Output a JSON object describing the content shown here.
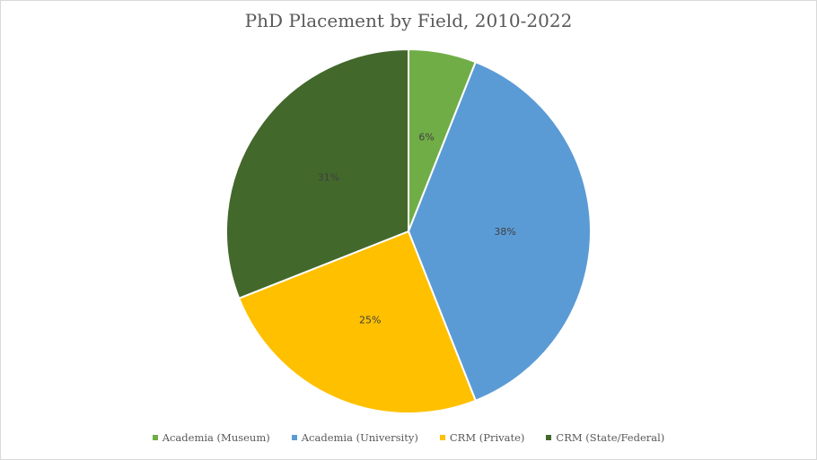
{
  "chart_data": {
    "type": "pie",
    "title": "PhD Placement by Field, 2010-2022",
    "slices": [
      {
        "label": "Academia (Museum)",
        "value": 6,
        "data_label": "6%",
        "color": "#70ad47"
      },
      {
        "label": "Academia (University)",
        "value": 38,
        "data_label": "38%",
        "color": "#5b9bd5"
      },
      {
        "label": "CRM (Private)",
        "value": 25,
        "data_label": "25%",
        "color": "#ffc000"
      },
      {
        "label": "CRM (State/Federal)",
        "value": 31,
        "data_label": "31%",
        "color": "#43682b"
      }
    ],
    "legend_position": "bottom",
    "start_angle": "12 o'clock, clockwise"
  },
  "colors": {
    "label_text": "#404040",
    "slice_border": "#ffffff"
  }
}
